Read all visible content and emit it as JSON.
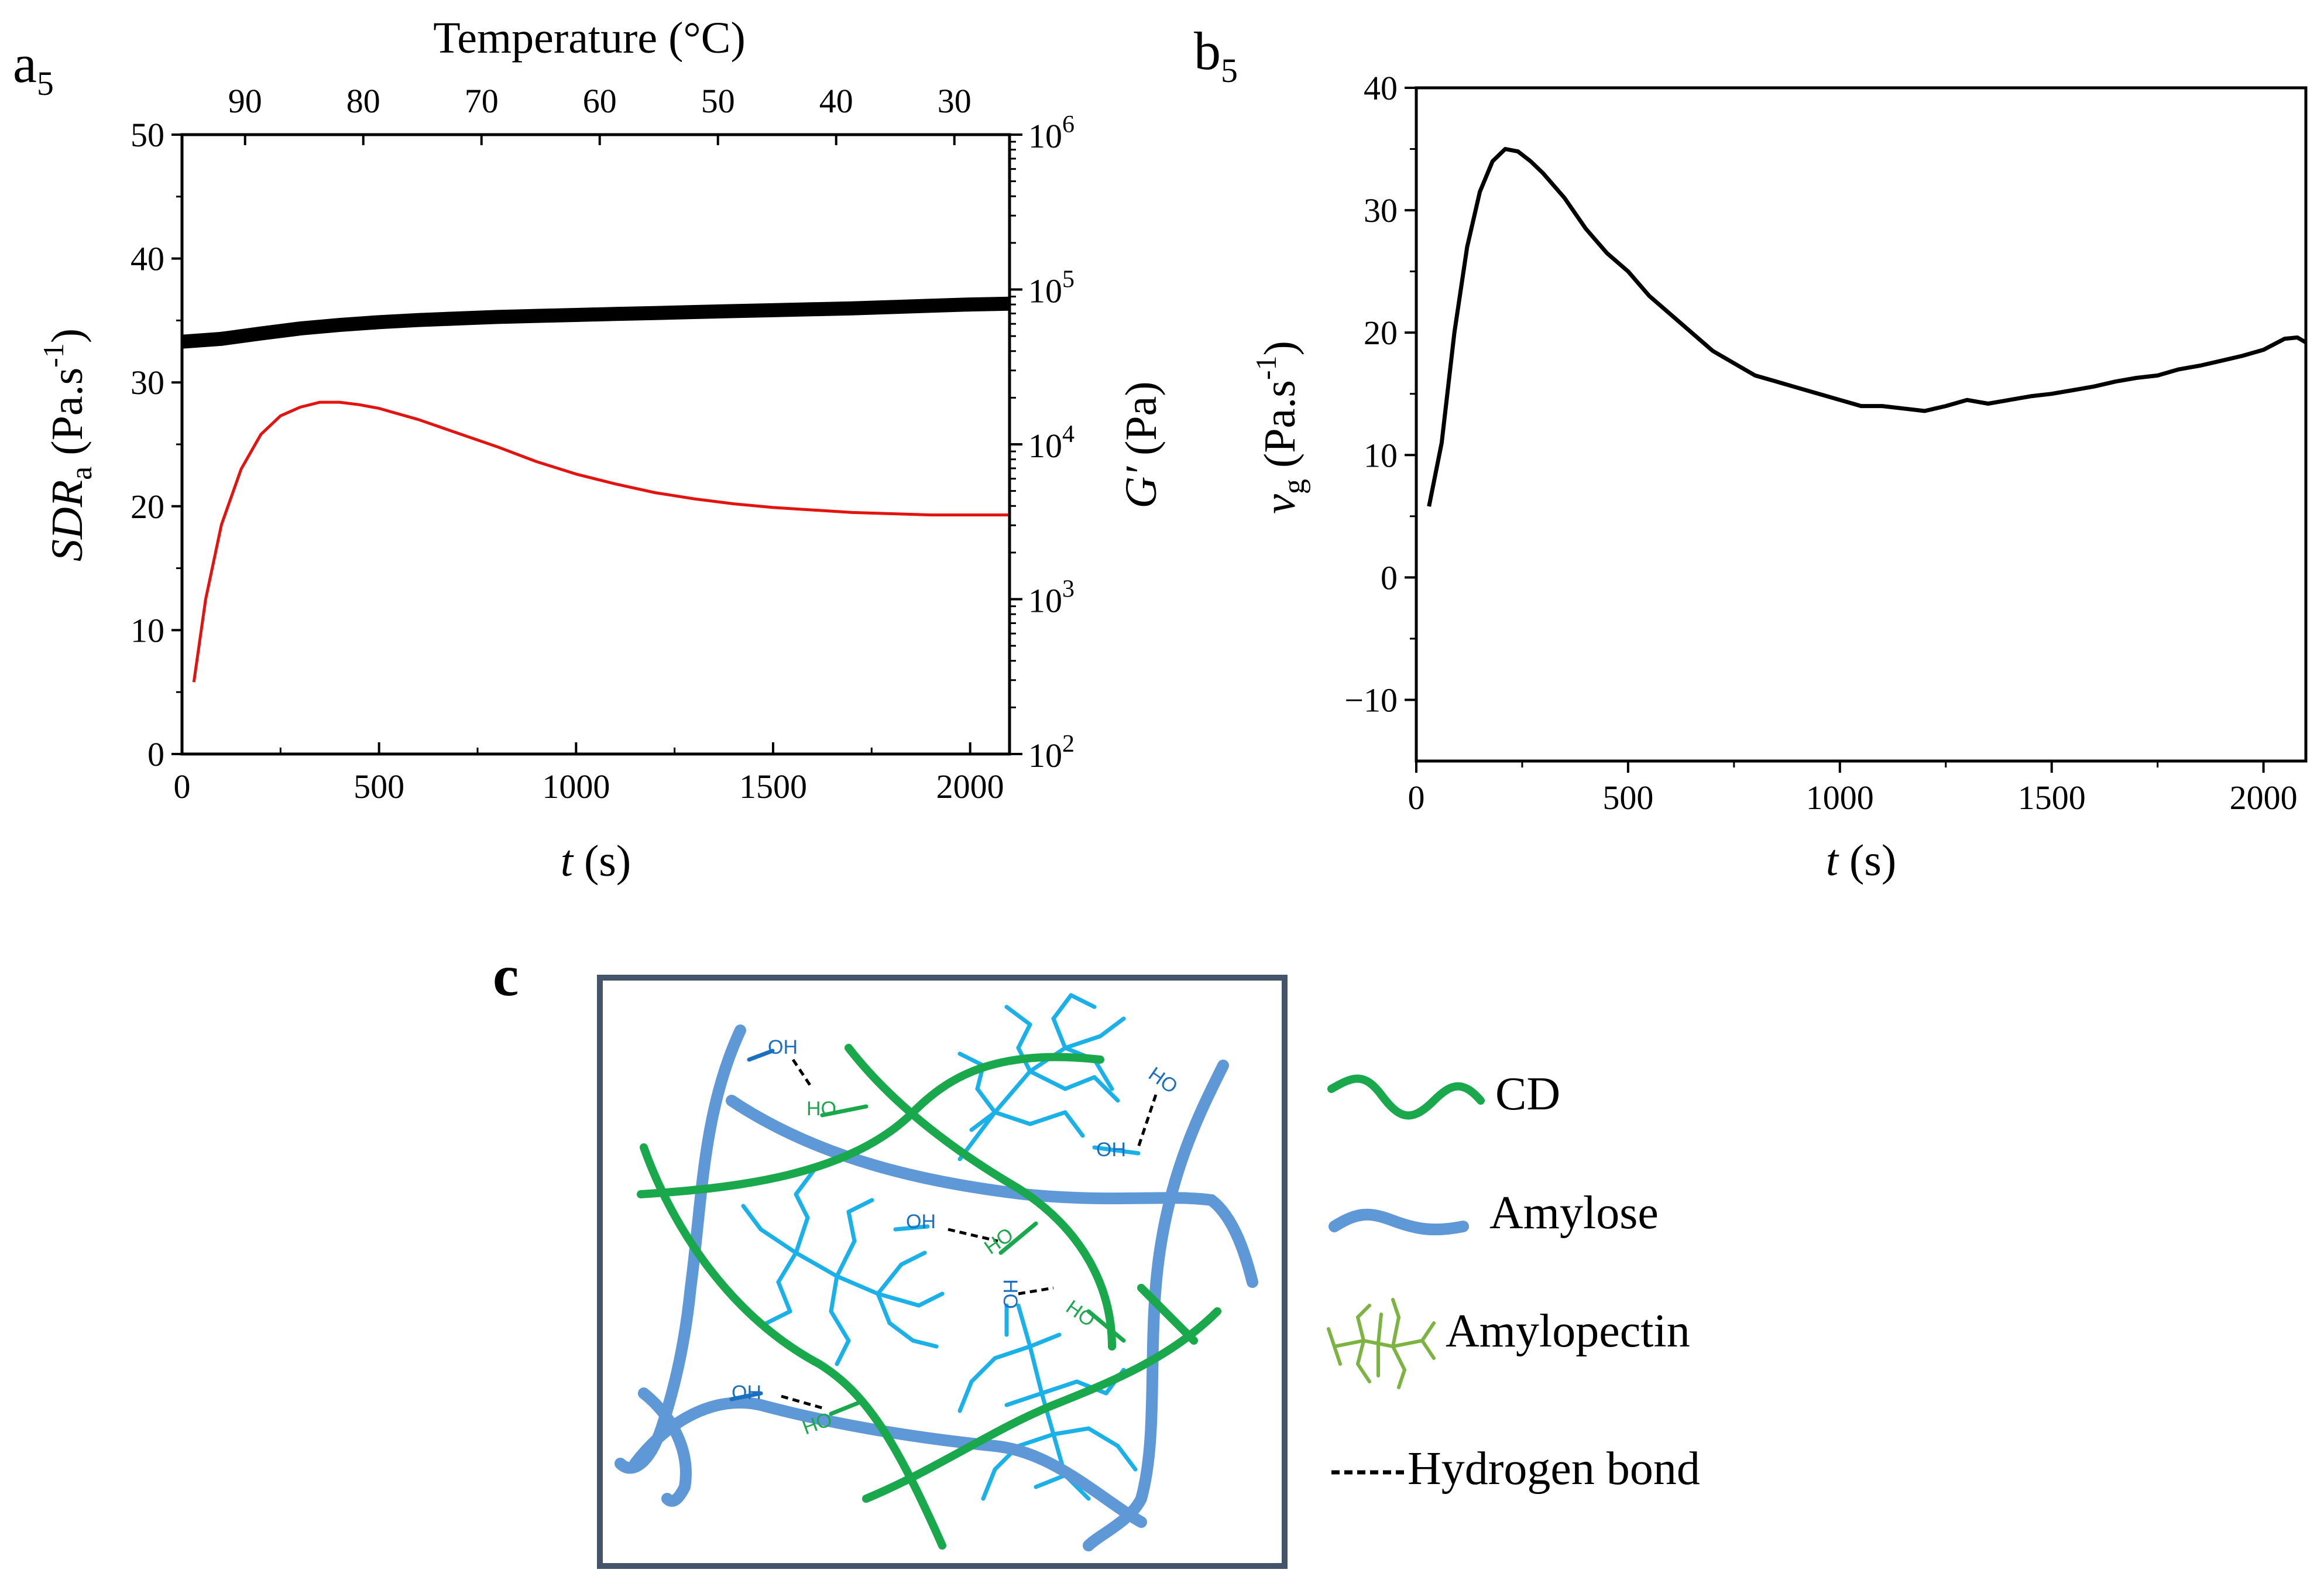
{
  "chart_data": [
    {
      "panel": "a5",
      "type": "line",
      "panel_label": "a",
      "panel_label_sub": "5",
      "top_axis": {
        "title": "Temperature (°C)",
        "ticks": [
          {
            "label": "90",
            "t": 160
          },
          {
            "label": "80",
            "t": 460
          },
          {
            "label": "70",
            "t": 760
          },
          {
            "label": "60",
            "t": 1060
          },
          {
            "label": "50",
            "t": 1360
          },
          {
            "label": "40",
            "t": 1660
          },
          {
            "label": "30",
            "t": 1960
          }
        ]
      },
      "xlabel_italic": "t",
      "xlabel_rest": " (s)",
      "xlim": [
        0,
        2100
      ],
      "xticks": [
        0,
        500,
        1000,
        1500,
        2000
      ],
      "ylabel_left_italic": "SDR",
      "ylabel_left_sub": "a",
      "ylabel_left_rest": " (Pa.s",
      "ylabel_left_sup": "-1",
      "ylabel_left_close": ")",
      "ylim_left": [
        0,
        50
      ],
      "yticks_left": [
        0,
        10,
        20,
        30,
        40,
        50
      ],
      "ylabel_right_italic": "G′",
      "ylabel_right_rest": " (Pa)",
      "ylim_right_log10": [
        2,
        6
      ],
      "yticks_right": [
        {
          "base": "10",
          "exp": "2"
        },
        {
          "base": "10",
          "exp": "3"
        },
        {
          "base": "10",
          "exp": "4"
        },
        {
          "base": "10",
          "exp": "5"
        },
        {
          "base": "10",
          "exp": "6"
        }
      ],
      "series": [
        {
          "name": "SDRa",
          "axis": "left",
          "color": "#e3130f",
          "x": [
            30,
            60,
            100,
            150,
            200,
            250,
            300,
            350,
            400,
            450,
            500,
            600,
            700,
            800,
            900,
            1000,
            1100,
            1200,
            1300,
            1400,
            1500,
            1600,
            1700,
            1800,
            1900,
            2000,
            2100
          ],
          "y": [
            5.8,
            12.5,
            18.5,
            23.0,
            25.8,
            27.3,
            28.0,
            28.4,
            28.4,
            28.2,
            27.9,
            27.0,
            25.9,
            24.8,
            23.6,
            22.6,
            21.8,
            21.1,
            20.6,
            20.2,
            19.9,
            19.7,
            19.5,
            19.4,
            19.3,
            19.3,
            19.3
          ]
        },
        {
          "name": "G′",
          "axis": "right",
          "color": "#000000",
          "x": [
            0,
            100,
            200,
            300,
            400,
            500,
            600,
            700,
            800,
            900,
            1000,
            1100,
            1200,
            1300,
            1400,
            1500,
            1600,
            1700,
            1800,
            1900,
            2000,
            2100
          ],
          "y": [
            46000,
            48000,
            52000,
            56000,
            59000,
            61500,
            63500,
            65000,
            66500,
            67500,
            68500,
            69500,
            70500,
            71500,
            72500,
            73500,
            74500,
            75500,
            77000,
            78500,
            80000,
            81000
          ]
        }
      ]
    },
    {
      "panel": "b5",
      "type": "line",
      "panel_label": "b",
      "panel_label_sub": "5",
      "xlabel_italic": "t",
      "xlabel_rest": " (s)",
      "xlim": [
        0,
        2100
      ],
      "xticks": [
        0,
        500,
        1000,
        1500,
        2000
      ],
      "ylabel_italic": "v",
      "ylabel_sub": "g",
      "ylabel_rest": " (Pa.s",
      "ylabel_sup": "-1",
      "ylabel_close": ")",
      "ylim": [
        -15,
        40
      ],
      "yticks": [
        -10,
        0,
        10,
        20,
        30,
        40
      ],
      "series": [
        {
          "name": "vg",
          "color": "#000000",
          "x": [
            30,
            60,
            90,
            120,
            150,
            180,
            210,
            240,
            270,
            300,
            350,
            400,
            450,
            500,
            550,
            600,
            650,
            700,
            750,
            800,
            850,
            900,
            950,
            1000,
            1050,
            1100,
            1150,
            1200,
            1250,
            1300,
            1350,
            1400,
            1450,
            1500,
            1550,
            1600,
            1650,
            1700,
            1750,
            1800,
            1850,
            1900,
            1950,
            2000,
            2050,
            2080,
            2100
          ],
          "y": [
            5.8,
            11,
            20,
            27,
            31.5,
            34,
            35,
            34.8,
            34,
            33,
            31,
            28.5,
            26.5,
            25,
            23,
            21.5,
            20,
            18.5,
            17.5,
            16.5,
            16,
            15.5,
            15,
            14.5,
            14,
            14,
            13.8,
            13.6,
            14,
            14.5,
            14.2,
            14.5,
            14.8,
            15,
            15.3,
            15.6,
            16,
            16.3,
            16.5,
            17,
            17.3,
            17.7,
            18.1,
            18.6,
            19.5,
            19.6,
            19.2
          ]
        }
      ]
    }
  ],
  "schematic": {
    "panel_label": "c",
    "oh_labels": {
      "oh": "OH",
      "ho": "HO"
    },
    "colors": {
      "cd": "#1aa84c",
      "amylose": "#5f98d6",
      "amylopectin": "#1ab0e8",
      "amylopectin_legend": "#7cb342",
      "frame": "#44546a"
    },
    "legend": [
      {
        "key": "cd",
        "label": "CD"
      },
      {
        "key": "amylose",
        "label": "Amylose"
      },
      {
        "key": "amylopectin",
        "label": "Amylopectin"
      },
      {
        "key": "hbond",
        "label": "Hydrogen bond"
      }
    ]
  }
}
